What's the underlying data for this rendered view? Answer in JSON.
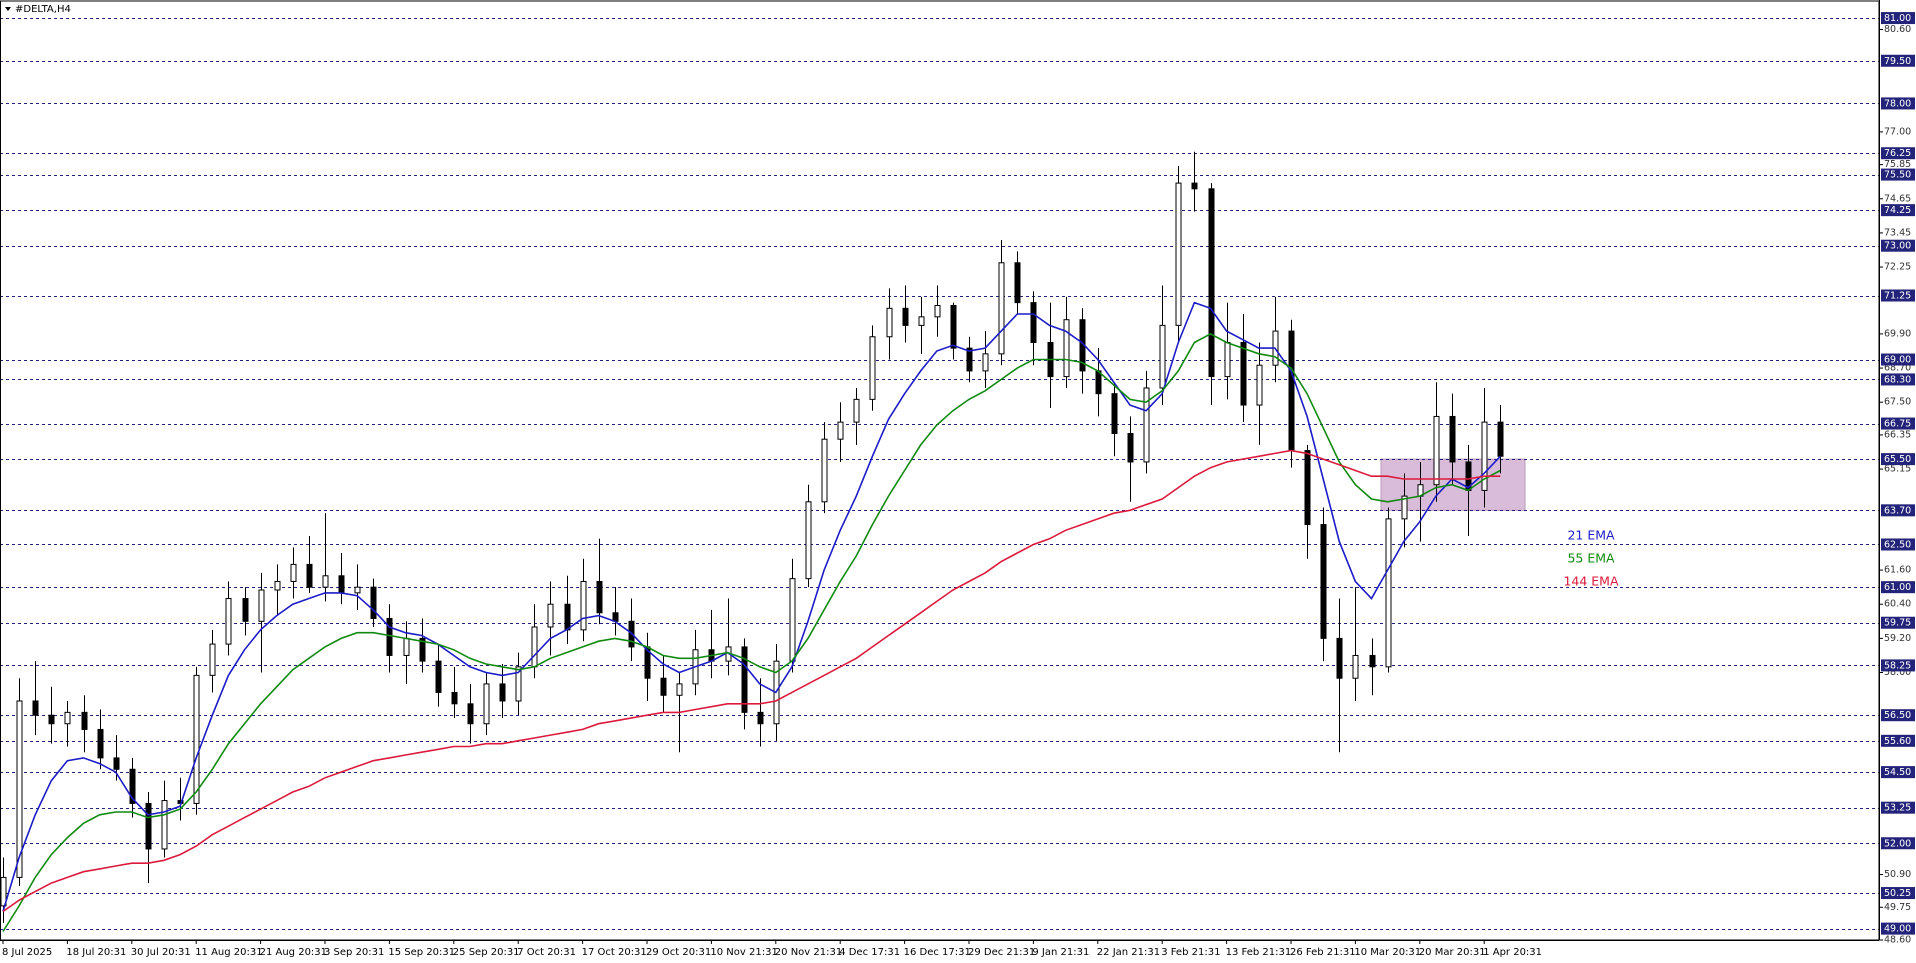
{
  "chart_data": {
    "type": "candlestick",
    "title": "#DELTA,H4",
    "categories": [
      "8 Jul 2025",
      null,
      null,
      null,
      "18 Jul 20:31",
      null,
      null,
      null,
      "30 Jul 20:31",
      null,
      null,
      null,
      "11 Aug 20:31",
      null,
      null,
      null,
      "21 Aug 20:31",
      null,
      null,
      null,
      "3 Sep 20:31",
      null,
      null,
      null,
      "15 Sep 20:31",
      null,
      null,
      null,
      "25 Sep 20:31",
      null,
      null,
      null,
      "7 Oct 20:31",
      null,
      null,
      null,
      "17 Oct 20:31",
      null,
      null,
      null,
      "29 Oct 20:31",
      null,
      null,
      null,
      "10 Nov 21:31",
      null,
      null,
      null,
      "20 Nov 21:31",
      null,
      null,
      null,
      "4 Dec 17:31",
      null,
      null,
      null,
      "16 Dec 17:31",
      null,
      null,
      null,
      "29 Dec 21:31",
      null,
      null,
      null,
      "9 Jan 21:31",
      null,
      null,
      null,
      "22 Jan 21:31",
      null,
      null,
      null,
      "3 Feb 21:31",
      null,
      null,
      null,
      "13 Feb 21:31",
      null,
      null,
      null,
      "26 Feb 21:31",
      null,
      null,
      null,
      "10 Mar 20:31",
      null,
      null,
      null,
      "20 Mar 20:31",
      null,
      null,
      null,
      "1 Apr 20:31",
      null
    ],
    "open": [
      49.8,
      50.8,
      57.0,
      56.5,
      56.2,
      56.6,
      56.0,
      55.0,
      54.6,
      53.4,
      51.8,
      53.5,
      53.4,
      57.9,
      59.0,
      60.6,
      59.8,
      60.9,
      61.2,
      61.8,
      61.0,
      61.4,
      60.8,
      61.0,
      59.9,
      58.6,
      59.2,
      58.4,
      57.3,
      56.9,
      56.2,
      57.6,
      57.0,
      58.2,
      59.6,
      60.4,
      59.5,
      61.2,
      60.1,
      59.8,
      58.9,
      57.8,
      57.2,
      57.6,
      58.8,
      58.4,
      58.9,
      56.6,
      56.2,
      58.4,
      61.3,
      64.0,
      66.2,
      66.8,
      67.6,
      69.8,
      70.8,
      70.2,
      70.5,
      70.9,
      69.4,
      68.6,
      69.2,
      72.4,
      71.0,
      69.6,
      68.4,
      70.4,
      68.6,
      67.8,
      66.4,
      65.4,
      68.0,
      70.2,
      75.2,
      75.0,
      68.4,
      69.6,
      67.4,
      68.8,
      70.0,
      65.8,
      63.2,
      59.2,
      57.8,
      58.6,
      58.2,
      63.4,
      64.2,
      64.6,
      67.0,
      65.4,
      64.4,
      66.8
    ],
    "high": [
      51.5,
      57.8,
      58.4,
      57.5,
      57.0,
      57.2,
      56.7,
      55.8,
      55.0,
      53.8,
      54.2,
      54.3,
      58.2,
      59.5,
      61.2,
      61.0,
      61.5,
      61.8,
      62.4,
      62.8,
      63.6,
      62.2,
      61.8,
      61.3,
      60.4,
      59.8,
      59.9,
      59.0,
      58.2,
      57.6,
      58.0,
      58.3,
      58.7,
      60.4,
      61.2,
      61.4,
      62.0,
      62.7,
      61.0,
      60.6,
      59.4,
      58.6,
      58.0,
      59.5,
      60.2,
      60.6,
      59.2,
      57.8,
      59.0,
      62.0,
      64.6,
      66.8,
      67.5,
      68.0,
      70.2,
      71.5,
      71.6,
      71.2,
      71.6,
      71.0,
      69.8,
      70.0,
      73.2,
      72.8,
      71.4,
      71.0,
      71.2,
      70.8,
      69.4,
      68.2,
      67.0,
      68.6,
      71.6,
      75.8,
      76.3,
      75.2,
      71.0,
      70.6,
      69.6,
      71.2,
      70.4,
      66.0,
      63.8,
      60.6,
      61.0,
      59.2,
      63.8,
      65.0,
      65.4,
      68.2,
      67.8,
      66.0,
      68.0,
      67.4
    ],
    "low": [
      49.2,
      50.5,
      55.8,
      55.5,
      55.4,
      55.2,
      54.6,
      54.2,
      52.9,
      50.6,
      51.5,
      52.8,
      53.0,
      57.3,
      58.6,
      59.3,
      58.0,
      60.0,
      60.6,
      60.8,
      60.5,
      60.4,
      60.2,
      59.6,
      58.0,
      57.6,
      58.0,
      56.8,
      56.4,
      55.5,
      55.8,
      56.4,
      56.5,
      57.8,
      58.6,
      59.0,
      59.1,
      59.7,
      59.3,
      58.4,
      57.0,
      56.6,
      55.2,
      57.2,
      57.8,
      57.9,
      56.0,
      55.4,
      55.6,
      58.0,
      61.0,
      63.6,
      65.4,
      66.0,
      67.2,
      69.0,
      69.6,
      69.2,
      69.8,
      69.0,
      68.2,
      68.0,
      68.8,
      70.6,
      68.8,
      67.3,
      68.0,
      67.8,
      67.0,
      65.6,
      64.0,
      65.0,
      67.4,
      69.6,
      74.2,
      67.4,
      67.6,
      66.8,
      66.0,
      68.2,
      65.2,
      62.0,
      58.4,
      55.2,
      57.0,
      57.2,
      58.0,
      62.4,
      62.6,
      64.0,
      64.6,
      62.8,
      63.8,
      65.0
    ],
    "close": [
      50.8,
      57.0,
      56.5,
      56.2,
      56.6,
      56.0,
      55.0,
      54.6,
      53.4,
      51.8,
      53.5,
      53.4,
      57.9,
      59.0,
      60.6,
      59.8,
      60.9,
      61.2,
      61.8,
      61.0,
      61.4,
      60.8,
      61.0,
      59.9,
      58.6,
      59.2,
      58.4,
      57.3,
      56.9,
      56.2,
      57.6,
      57.0,
      58.2,
      59.6,
      60.4,
      59.5,
      61.2,
      60.1,
      59.8,
      58.9,
      57.8,
      57.2,
      57.6,
      58.8,
      58.4,
      58.9,
      56.6,
      56.2,
      58.4,
      61.3,
      64.0,
      66.2,
      66.8,
      67.6,
      69.8,
      70.8,
      70.2,
      70.5,
      70.9,
      69.4,
      68.6,
      69.2,
      72.4,
      71.0,
      69.6,
      68.4,
      70.4,
      68.6,
      67.8,
      66.4,
      65.4,
      68.0,
      70.2,
      75.2,
      75.0,
      68.4,
      69.6,
      67.4,
      68.8,
      70.0,
      65.8,
      63.2,
      59.2,
      57.8,
      58.6,
      58.2,
      63.4,
      64.2,
      64.6,
      67.0,
      65.4,
      64.4,
      66.8,
      65.6
    ],
    "up_color": "#ffffff",
    "down_color": "#000000",
    "series": [
      {
        "name": "21 EMA",
        "color": "#1c1cc8",
        "values": [
          49.6,
          51.5,
          53.0,
          54.2,
          54.9,
          55.0,
          54.8,
          54.5,
          53.6,
          53.0,
          53.1,
          53.3,
          55.0,
          56.5,
          57.9,
          58.8,
          59.5,
          60.0,
          60.4,
          60.6,
          60.8,
          60.8,
          60.7,
          60.2,
          59.6,
          59.4,
          59.3,
          59.0,
          58.6,
          58.2,
          58.0,
          57.9,
          58.0,
          58.6,
          59.2,
          59.5,
          59.9,
          60.0,
          59.8,
          59.4,
          58.8,
          58.3,
          58.0,
          58.2,
          58.4,
          58.7,
          58.3,
          57.6,
          57.3,
          58.2,
          59.8,
          61.6,
          63.0,
          64.2,
          65.6,
          66.9,
          67.8,
          68.6,
          69.3,
          69.5,
          69.3,
          69.4,
          70.0,
          70.6,
          70.6,
          70.2,
          70.0,
          69.6,
          69.0,
          68.2,
          67.4,
          67.2,
          67.8,
          69.6,
          71.0,
          70.8,
          70.0,
          69.7,
          69.4,
          69.4,
          68.6,
          67.0,
          64.8,
          62.6,
          61.2,
          60.6,
          61.6,
          62.6,
          63.3,
          64.2,
          64.8,
          64.5,
          65.0,
          65.6
        ]
      },
      {
        "name": "55 EMA",
        "color": "#108a10",
        "values": [
          48.9,
          49.8,
          50.8,
          51.6,
          52.2,
          52.7,
          53.0,
          53.1,
          53.1,
          52.9,
          53.0,
          53.2,
          53.8,
          54.6,
          55.5,
          56.2,
          56.9,
          57.5,
          58.1,
          58.5,
          58.9,
          59.2,
          59.4,
          59.4,
          59.3,
          59.2,
          59.1,
          59.0,
          58.8,
          58.5,
          58.3,
          58.2,
          58.1,
          58.2,
          58.5,
          58.7,
          58.9,
          59.1,
          59.2,
          59.1,
          58.9,
          58.6,
          58.5,
          58.5,
          58.6,
          58.7,
          58.5,
          58.2,
          58.0,
          58.4,
          59.2,
          60.2,
          61.2,
          62.1,
          63.2,
          64.2,
          65.1,
          66.0,
          66.7,
          67.2,
          67.6,
          67.9,
          68.3,
          68.7,
          69.0,
          69.0,
          69.0,
          68.9,
          68.6,
          68.1,
          67.6,
          67.5,
          67.9,
          68.6,
          69.6,
          69.9,
          69.6,
          69.4,
          69.2,
          69.1,
          68.7,
          67.8,
          66.6,
          65.4,
          64.6,
          64.1,
          64.0,
          64.1,
          64.2,
          64.5,
          64.6,
          64.4,
          64.8,
          65.1
        ]
      },
      {
        "name": "144 EMA",
        "color": "#dc1a3c",
        "values": [
          49.6,
          50.0,
          50.3,
          50.6,
          50.8,
          51.0,
          51.1,
          51.2,
          51.3,
          51.3,
          51.4,
          51.6,
          51.9,
          52.3,
          52.6,
          52.9,
          53.2,
          53.5,
          53.8,
          54.0,
          54.3,
          54.5,
          54.7,
          54.9,
          55.0,
          55.1,
          55.2,
          55.3,
          55.4,
          55.4,
          55.5,
          55.5,
          55.6,
          55.7,
          55.8,
          55.9,
          56.0,
          56.2,
          56.3,
          56.4,
          56.5,
          56.6,
          56.6,
          56.7,
          56.8,
          56.9,
          56.9,
          56.9,
          57.0,
          57.3,
          57.6,
          57.9,
          58.2,
          58.5,
          58.9,
          59.3,
          59.7,
          60.1,
          60.5,
          60.9,
          61.2,
          61.5,
          61.9,
          62.2,
          62.5,
          62.7,
          63.0,
          63.2,
          63.4,
          63.6,
          63.7,
          63.9,
          64.1,
          64.5,
          64.9,
          65.2,
          65.4,
          65.5,
          65.6,
          65.7,
          65.8,
          65.7,
          65.5,
          65.3,
          65.1,
          64.9,
          64.9,
          64.8,
          64.8,
          64.8,
          64.8,
          64.8,
          64.9,
          64.9
        ]
      }
    ],
    "ylim": [
      48.6,
      81.6
    ],
    "yticks": [
      {
        "value": 80.6,
        "label": "80.60"
      },
      {
        "value": 77,
        "label": "77.00"
      },
      {
        "value": 75.85,
        "label": "75.85"
      },
      {
        "value": 74.65,
        "label": "74.65"
      },
      {
        "value": 73.45,
        "label": "73.45"
      },
      {
        "value": 72.25,
        "label": "72.25"
      },
      {
        "value": 69.9,
        "label": "69.90"
      },
      {
        "value": 68.7,
        "label": "68.70"
      },
      {
        "value": 67.5,
        "label": "67.50"
      },
      {
        "value": 66.35,
        "label": "66.35"
      },
      {
        "value": 65.15,
        "label": "65.15"
      },
      {
        "value": 61.6,
        "label": "61.60"
      },
      {
        "value": 60.4,
        "label": "60.40"
      },
      {
        "value": 59.2,
        "label": "59.20"
      },
      {
        "value": 58,
        "label": "58.00"
      },
      {
        "value": 50.9,
        "label": "50.90"
      },
      {
        "value": 49.75,
        "label": "49.75"
      },
      {
        "value": 48.6,
        "label": "48.60"
      }
    ],
    "levels": [
      {
        "value": 81,
        "label": "81.00"
      },
      {
        "value": 79.5,
        "label": "79.50"
      },
      {
        "value": 78,
        "label": "78.00"
      },
      {
        "value": 76.25,
        "label": "76.25"
      },
      {
        "value": 75.5,
        "label": "75.50"
      },
      {
        "value": 74.25,
        "label": "74.25"
      },
      {
        "value": 73,
        "label": "73.00"
      },
      {
        "value": 71.25,
        "label": "71.25"
      },
      {
        "value": 69,
        "label": "69.00"
      },
      {
        "value": 68.3,
        "label": "68.30"
      },
      {
        "value": 66.75,
        "label": "66.75"
      },
      {
        "value": 65.5,
        "label": "65.50"
      },
      {
        "value": 63.7,
        "label": "63.70"
      },
      {
        "value": 62.5,
        "label": "62.50"
      },
      {
        "value": 61,
        "label": "61.00"
      },
      {
        "value": 59.75,
        "label": "59.75"
      },
      {
        "value": 58.25,
        "label": "58.25"
      },
      {
        "value": 56.5,
        "label": "56.50"
      },
      {
        "value": 55.6,
        "label": "55.60"
      },
      {
        "value": 54.5,
        "label": "54.50"
      },
      {
        "value": 53.25,
        "label": "53.25"
      },
      {
        "value": 52,
        "label": "52.00"
      },
      {
        "value": 50.25,
        "label": "50.25"
      },
      {
        "value": 49,
        "label": "49.00"
      }
    ],
    "level_color": "#23237a",
    "zone": {
      "from": 63.7,
      "to": 65.5,
      "color": "#d9bcd9"
    },
    "grid": false
  }
}
